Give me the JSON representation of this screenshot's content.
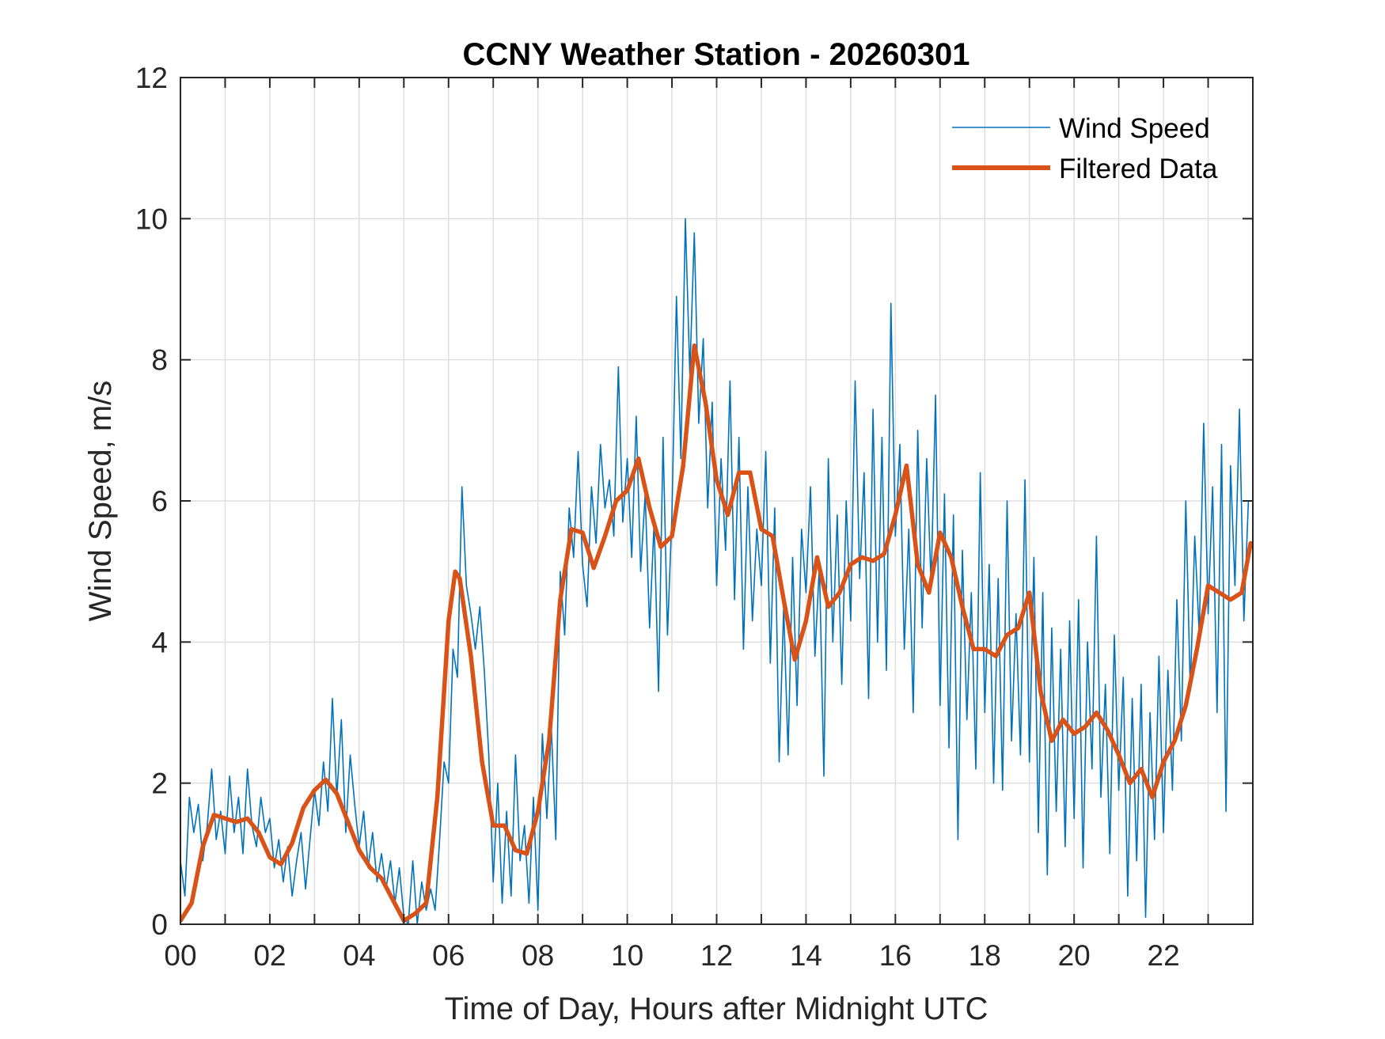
{
  "chart_data": {
    "type": "line",
    "title": "CCNY Weather Station - 20260301",
    "xlabel": "Time of Day, Hours after Midnight UTC",
    "ylabel": "Wind Speed, m/s",
    "xlim": [
      0,
      24
    ],
    "ylim": [
      0,
      12
    ],
    "xticks": [
      0,
      2,
      4,
      6,
      8,
      10,
      12,
      14,
      16,
      18,
      20,
      22
    ],
    "xtick_labels": [
      "00",
      "02",
      "04",
      "06",
      "08",
      "10",
      "12",
      "14",
      "16",
      "18",
      "20",
      "22"
    ],
    "xgrid_step": 1,
    "yticks": [
      0,
      2,
      4,
      6,
      8,
      10,
      12
    ],
    "ytick_labels": [
      "0",
      "2",
      "4",
      "6",
      "8",
      "10",
      "12"
    ],
    "grid": true,
    "legend": {
      "placement": "top-right",
      "entries": [
        "Wind Speed",
        "Filtered Data"
      ]
    },
    "series": [
      {
        "name": "Wind Speed",
        "color": "#0072BD",
        "x_start": 0,
        "x_step": 0.1,
        "values": [
          0.9,
          0.4,
          1.8,
          1.3,
          1.7,
          0.9,
          1.4,
          2.2,
          1.2,
          1.6,
          1.0,
          2.1,
          1.3,
          1.8,
          1.0,
          2.2,
          1.4,
          1.1,
          1.8,
          1.3,
          1.5,
          0.8,
          1.2,
          0.6,
          1.1,
          0.4,
          0.9,
          1.3,
          0.5,
          1.2,
          1.9,
          1.4,
          2.3,
          1.6,
          3.2,
          1.8,
          2.9,
          1.3,
          2.4,
          1.7,
          1.1,
          1.6,
          0.8,
          1.3,
          0.6,
          1.0,
          0.5,
          0.9,
          0.3,
          0.8,
          0.1,
          0.0,
          0.9,
          0.0,
          0.6,
          0.2,
          0.5,
          0.2,
          1.2,
          2.3,
          2.0,
          3.9,
          3.5,
          6.2,
          4.8,
          4.4,
          3.9,
          4.5,
          3.6,
          2.4,
          0.6,
          2.0,
          0.3,
          1.6,
          0.4,
          2.4,
          0.9,
          1.4,
          0.3,
          1.8,
          0.2,
          2.7,
          1.5,
          2.8,
          1.2,
          5.0,
          4.1,
          5.9,
          5.2,
          6.7,
          5.1,
          4.5,
          6.2,
          5.4,
          6.8,
          5.9,
          6.3,
          5.5,
          7.9,
          5.7,
          6.6,
          5.2,
          7.2,
          5.0,
          6.1,
          4.2,
          5.7,
          3.3,
          6.9,
          4.1,
          5.8,
          8.9,
          6.6,
          10.0,
          7.8,
          9.8,
          7.1,
          8.3,
          5.9,
          7.4,
          4.8,
          6.6,
          5.3,
          7.7,
          4.6,
          6.9,
          3.9,
          6.2,
          4.3,
          5.6,
          4.8,
          6.7,
          3.7,
          5.9,
          2.3,
          4.5,
          2.4,
          5.2,
          3.1,
          5.6,
          4.7,
          6.2,
          3.8,
          5.1,
          2.1,
          6.6,
          4.0,
          5.8,
          3.4,
          6.0,
          4.3,
          7.7,
          4.9,
          6.4,
          3.2,
          7.3,
          4.0,
          6.9,
          3.6,
          8.8,
          5.5,
          6.8,
          3.9,
          5.6,
          3.0,
          7.0,
          4.2,
          6.6,
          4.8,
          7.5,
          3.1,
          6.1,
          2.5,
          5.8,
          1.2,
          5.3,
          2.9,
          4.7,
          2.2,
          6.4,
          3.0,
          5.1,
          2.0,
          4.9,
          1.9,
          6.0,
          2.6,
          4.4,
          2.4,
          6.3,
          2.3,
          5.2,
          1.3,
          4.7,
          0.7,
          4.2,
          1.6,
          3.9,
          1.1,
          4.3,
          1.5,
          4.6,
          0.8,
          4.0,
          2.2,
          5.5,
          1.8,
          3.4,
          1.0,
          4.1,
          1.9,
          3.5,
          0.4,
          3.2,
          0.9,
          3.4,
          0.1,
          3.0,
          1.2,
          3.8,
          1.3,
          3.6,
          1.9,
          4.6,
          2.6,
          6.0,
          3.3,
          5.5,
          4.1,
          7.1,
          4.4,
          6.2,
          3.0,
          6.8,
          1.6,
          6.5,
          4.8,
          7.3,
          4.3,
          6.0
        ]
      },
      {
        "name": "Filtered Data",
        "color": "#D95319",
        "x": [
          0,
          0.25,
          0.5,
          0.75,
          1.0,
          1.25,
          1.5,
          1.75,
          2.0,
          2.25,
          2.5,
          2.75,
          3.0,
          3.25,
          3.5,
          3.75,
          4.0,
          4.25,
          4.5,
          4.75,
          5.0,
          5.25,
          5.5,
          5.75,
          6.0,
          6.15,
          6.25,
          6.5,
          6.75,
          7.0,
          7.25,
          7.5,
          7.75,
          8.0,
          8.25,
          8.5,
          8.75,
          9.0,
          9.25,
          9.5,
          9.75,
          10.0,
          10.25,
          10.5,
          10.75,
          11.0,
          11.25,
          11.5,
          11.75,
          12.0,
          12.25,
          12.5,
          12.75,
          13.0,
          13.25,
          13.5,
          13.75,
          14.0,
          14.25,
          14.5,
          14.75,
          15.0,
          15.25,
          15.5,
          15.75,
          16.0,
          16.25,
          16.5,
          16.75,
          17.0,
          17.25,
          17.5,
          17.75,
          18.0,
          18.25,
          18.5,
          18.75,
          19.0,
          19.25,
          19.5,
          19.75,
          20.0,
          20.25,
          20.5,
          20.75,
          21.0,
          21.25,
          21.5,
          21.75,
          22.0,
          22.25,
          22.5,
          22.75,
          23.0,
          23.25,
          23.5,
          23.75,
          23.95
        ],
        "values": [
          0.05,
          0.3,
          1.1,
          1.55,
          1.5,
          1.45,
          1.5,
          1.3,
          0.95,
          0.85,
          1.15,
          1.65,
          1.9,
          2.05,
          1.85,
          1.45,
          1.05,
          0.8,
          0.65,
          0.35,
          0.05,
          0.15,
          0.3,
          1.8,
          4.3,
          5.0,
          4.9,
          3.8,
          2.3,
          1.4,
          1.4,
          1.05,
          1.0,
          1.6,
          2.6,
          4.6,
          5.6,
          5.55,
          5.05,
          5.5,
          6.0,
          6.15,
          6.6,
          5.9,
          5.35,
          5.5,
          6.5,
          8.2,
          7.4,
          6.3,
          5.8,
          6.4,
          6.4,
          5.6,
          5.5,
          4.6,
          3.75,
          4.3,
          5.2,
          4.5,
          4.7,
          5.1,
          5.2,
          5.15,
          5.25,
          5.8,
          6.5,
          5.1,
          4.7,
          5.55,
          5.2,
          4.5,
          3.9,
          3.9,
          3.8,
          4.1,
          4.2,
          4.7,
          3.3,
          2.6,
          2.9,
          2.7,
          2.8,
          3.0,
          2.75,
          2.4,
          2.0,
          2.2,
          1.8,
          2.3,
          2.6,
          3.1,
          3.9,
          4.8,
          4.7,
          4.6,
          4.7,
          5.4
        ]
      }
    ]
  }
}
